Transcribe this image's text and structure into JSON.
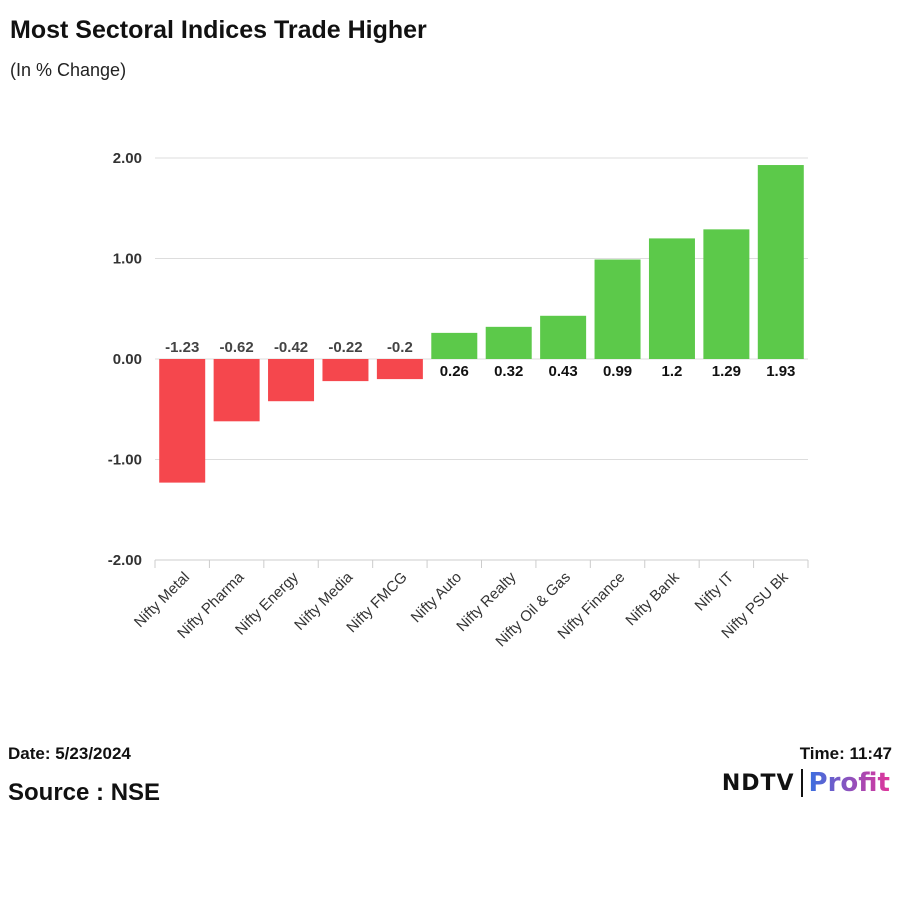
{
  "title": "Most Sectoral Indices Trade Higher",
  "subtitle": "(In % Change)",
  "footer": {
    "date": "Date: 5/23/2024",
    "source": "Source : NSE",
    "time": "Time: 11:47"
  },
  "logo": {
    "part1": "NDTV",
    "part2": "Profit",
    "part2_color_start": "#3b6fe0",
    "part2_color_end": "#e0359a"
  },
  "colors": {
    "negative": "#f5474d",
    "positive": "#5cc94a"
  },
  "chart_data": {
    "type": "bar",
    "categories": [
      "Nifty Metal",
      "Nifty Pharma",
      "Nifty Energy",
      "Nifty Media",
      "Nifty FMCG",
      "Nifty Auto",
      "Nifty Realty",
      "Nifty Oil & Gas",
      "Nifty Finance",
      "Nifty Bank",
      "Nifty IT",
      "Nifty PSU Bk"
    ],
    "values": [
      -1.23,
      -0.62,
      -0.42,
      -0.22,
      -0.2,
      0.26,
      0.32,
      0.43,
      0.99,
      1.2,
      1.29,
      1.93
    ],
    "value_labels": [
      "-1.23",
      "-0.62",
      "-0.42",
      "-0.22",
      "-0.2",
      "0.26",
      "0.32",
      "0.43",
      "0.99",
      "1.2",
      "1.29",
      "1.93"
    ],
    "yticks": [
      2,
      1,
      0,
      -1,
      -2
    ],
    "ytick_labels": [
      "2.00",
      "1.00",
      "0.00",
      "-1.00",
      "-2.00"
    ],
    "ylim": [
      -2,
      2
    ],
    "grid": true,
    "legend": "none"
  }
}
